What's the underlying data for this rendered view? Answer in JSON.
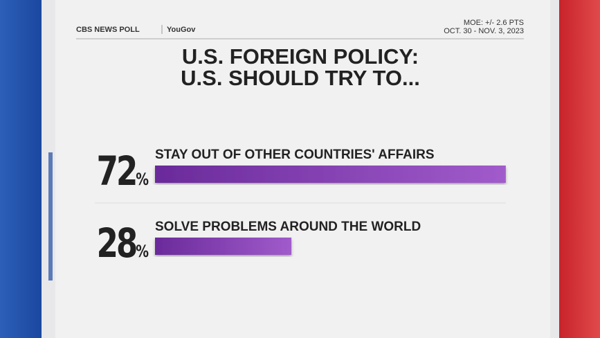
{
  "chart_data": {
    "type": "bar",
    "source": "CBS NEWS POLL",
    "source_partner": "YouGov",
    "moe": "MOE: +/- 2.6 PTS",
    "dates": "OCT. 30 - NOV. 3, 2023",
    "title": [
      "U.S. FOREIGN POLICY:",
      "U.S. SHOULD TRY TO..."
    ],
    "categories": [
      "STAY OUT OF OTHER COUNTRIES' AFFAIRS",
      "SOLVE PROBLEMS AROUND THE WORLD"
    ],
    "values": [
      72,
      28
    ],
    "value_labels": [
      "72%",
      "28%"
    ],
    "color": [
      "#6a2a9a",
      "#a15bcb"
    ]
  }
}
